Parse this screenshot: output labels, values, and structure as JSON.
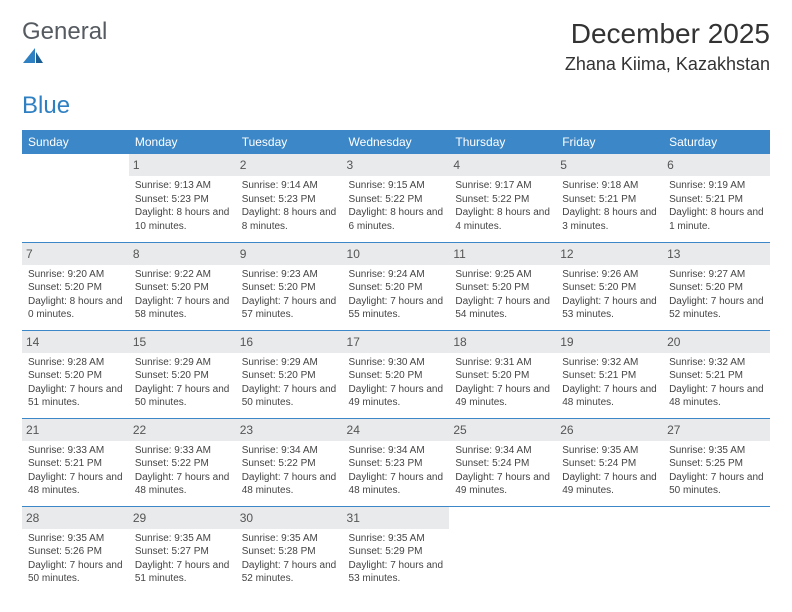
{
  "logo": {
    "word1": "General",
    "word2": "Blue"
  },
  "title": {
    "month": "December 2025",
    "location": "Zhana Kiima, Kazakhstan"
  },
  "colors": {
    "header_bg": "#3c87c7",
    "header_text": "#ffffff",
    "daynum_bg": "#e9eaeb",
    "cell_border": "#3c87c7",
    "logo_gray": "#555b61",
    "logo_blue": "#2f80c2"
  },
  "weekdays": [
    "Sunday",
    "Monday",
    "Tuesday",
    "Wednesday",
    "Thursday",
    "Friday",
    "Saturday"
  ],
  "weeks": [
    [
      {
        "day": "",
        "sunrise": "",
        "sunset": "",
        "daylight": ""
      },
      {
        "day": "1",
        "sunrise": "Sunrise: 9:13 AM",
        "sunset": "Sunset: 5:23 PM",
        "daylight": "Daylight: 8 hours and 10 minutes."
      },
      {
        "day": "2",
        "sunrise": "Sunrise: 9:14 AM",
        "sunset": "Sunset: 5:23 PM",
        "daylight": "Daylight: 8 hours and 8 minutes."
      },
      {
        "day": "3",
        "sunrise": "Sunrise: 9:15 AM",
        "sunset": "Sunset: 5:22 PM",
        "daylight": "Daylight: 8 hours and 6 minutes."
      },
      {
        "day": "4",
        "sunrise": "Sunrise: 9:17 AM",
        "sunset": "Sunset: 5:22 PM",
        "daylight": "Daylight: 8 hours and 4 minutes."
      },
      {
        "day": "5",
        "sunrise": "Sunrise: 9:18 AM",
        "sunset": "Sunset: 5:21 PM",
        "daylight": "Daylight: 8 hours and 3 minutes."
      },
      {
        "day": "6",
        "sunrise": "Sunrise: 9:19 AM",
        "sunset": "Sunset: 5:21 PM",
        "daylight": "Daylight: 8 hours and 1 minute."
      }
    ],
    [
      {
        "day": "7",
        "sunrise": "Sunrise: 9:20 AM",
        "sunset": "Sunset: 5:20 PM",
        "daylight": "Daylight: 8 hours and 0 minutes."
      },
      {
        "day": "8",
        "sunrise": "Sunrise: 9:22 AM",
        "sunset": "Sunset: 5:20 PM",
        "daylight": "Daylight: 7 hours and 58 minutes."
      },
      {
        "day": "9",
        "sunrise": "Sunrise: 9:23 AM",
        "sunset": "Sunset: 5:20 PM",
        "daylight": "Daylight: 7 hours and 57 minutes."
      },
      {
        "day": "10",
        "sunrise": "Sunrise: 9:24 AM",
        "sunset": "Sunset: 5:20 PM",
        "daylight": "Daylight: 7 hours and 55 minutes."
      },
      {
        "day": "11",
        "sunrise": "Sunrise: 9:25 AM",
        "sunset": "Sunset: 5:20 PM",
        "daylight": "Daylight: 7 hours and 54 minutes."
      },
      {
        "day": "12",
        "sunrise": "Sunrise: 9:26 AM",
        "sunset": "Sunset: 5:20 PM",
        "daylight": "Daylight: 7 hours and 53 minutes."
      },
      {
        "day": "13",
        "sunrise": "Sunrise: 9:27 AM",
        "sunset": "Sunset: 5:20 PM",
        "daylight": "Daylight: 7 hours and 52 minutes."
      }
    ],
    [
      {
        "day": "14",
        "sunrise": "Sunrise: 9:28 AM",
        "sunset": "Sunset: 5:20 PM",
        "daylight": "Daylight: 7 hours and 51 minutes."
      },
      {
        "day": "15",
        "sunrise": "Sunrise: 9:29 AM",
        "sunset": "Sunset: 5:20 PM",
        "daylight": "Daylight: 7 hours and 50 minutes."
      },
      {
        "day": "16",
        "sunrise": "Sunrise: 9:29 AM",
        "sunset": "Sunset: 5:20 PM",
        "daylight": "Daylight: 7 hours and 50 minutes."
      },
      {
        "day": "17",
        "sunrise": "Sunrise: 9:30 AM",
        "sunset": "Sunset: 5:20 PM",
        "daylight": "Daylight: 7 hours and 49 minutes."
      },
      {
        "day": "18",
        "sunrise": "Sunrise: 9:31 AM",
        "sunset": "Sunset: 5:20 PM",
        "daylight": "Daylight: 7 hours and 49 minutes."
      },
      {
        "day": "19",
        "sunrise": "Sunrise: 9:32 AM",
        "sunset": "Sunset: 5:21 PM",
        "daylight": "Daylight: 7 hours and 48 minutes."
      },
      {
        "day": "20",
        "sunrise": "Sunrise: 9:32 AM",
        "sunset": "Sunset: 5:21 PM",
        "daylight": "Daylight: 7 hours and 48 minutes."
      }
    ],
    [
      {
        "day": "21",
        "sunrise": "Sunrise: 9:33 AM",
        "sunset": "Sunset: 5:21 PM",
        "daylight": "Daylight: 7 hours and 48 minutes."
      },
      {
        "day": "22",
        "sunrise": "Sunrise: 9:33 AM",
        "sunset": "Sunset: 5:22 PM",
        "daylight": "Daylight: 7 hours and 48 minutes."
      },
      {
        "day": "23",
        "sunrise": "Sunrise: 9:34 AM",
        "sunset": "Sunset: 5:22 PM",
        "daylight": "Daylight: 7 hours and 48 minutes."
      },
      {
        "day": "24",
        "sunrise": "Sunrise: 9:34 AM",
        "sunset": "Sunset: 5:23 PM",
        "daylight": "Daylight: 7 hours and 48 minutes."
      },
      {
        "day": "25",
        "sunrise": "Sunrise: 9:34 AM",
        "sunset": "Sunset: 5:24 PM",
        "daylight": "Daylight: 7 hours and 49 minutes."
      },
      {
        "day": "26",
        "sunrise": "Sunrise: 9:35 AM",
        "sunset": "Sunset: 5:24 PM",
        "daylight": "Daylight: 7 hours and 49 minutes."
      },
      {
        "day": "27",
        "sunrise": "Sunrise: 9:35 AM",
        "sunset": "Sunset: 5:25 PM",
        "daylight": "Daylight: 7 hours and 50 minutes."
      }
    ],
    [
      {
        "day": "28",
        "sunrise": "Sunrise: 9:35 AM",
        "sunset": "Sunset: 5:26 PM",
        "daylight": "Daylight: 7 hours and 50 minutes."
      },
      {
        "day": "29",
        "sunrise": "Sunrise: 9:35 AM",
        "sunset": "Sunset: 5:27 PM",
        "daylight": "Daylight: 7 hours and 51 minutes."
      },
      {
        "day": "30",
        "sunrise": "Sunrise: 9:35 AM",
        "sunset": "Sunset: 5:28 PM",
        "daylight": "Daylight: 7 hours and 52 minutes."
      },
      {
        "day": "31",
        "sunrise": "Sunrise: 9:35 AM",
        "sunset": "Sunset: 5:29 PM",
        "daylight": "Daylight: 7 hours and 53 minutes."
      },
      {
        "day": "",
        "sunrise": "",
        "sunset": "",
        "daylight": ""
      },
      {
        "day": "",
        "sunrise": "",
        "sunset": "",
        "daylight": ""
      },
      {
        "day": "",
        "sunrise": "",
        "sunset": "",
        "daylight": ""
      }
    ]
  ]
}
